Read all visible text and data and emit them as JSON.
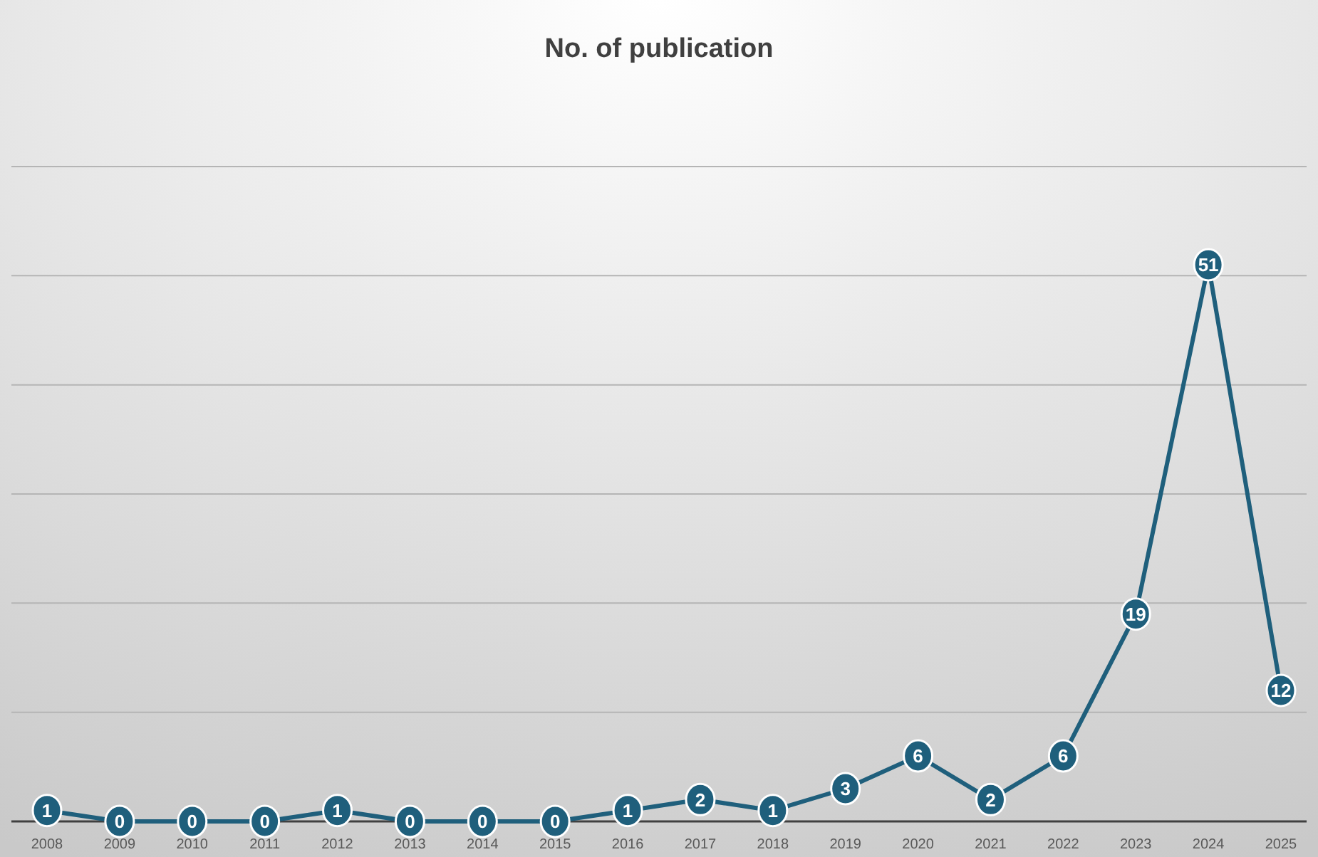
{
  "chart_data": {
    "type": "line",
    "title": "No. of publication",
    "categories": [
      "2008",
      "2009",
      "2010",
      "2011",
      "2012",
      "2013",
      "2014",
      "2015",
      "2016",
      "2017",
      "2018",
      "2019",
      "2020",
      "2021",
      "2022",
      "2023",
      "2024",
      "2025"
    ],
    "values": [
      1,
      0,
      0,
      0,
      1,
      0,
      0,
      0,
      1,
      2,
      1,
      3,
      6,
      2,
      6,
      19,
      51,
      12
    ],
    "color": "#1f5f7c",
    "marker": "circle",
    "line_style": "solid",
    "data_labels": true,
    "ylim": [
      0,
      60
    ],
    "yticks": [
      {
        "value": 0,
        "label": null
      },
      {
        "value": 10,
        "label": null
      },
      {
        "value": 20,
        "label": null
      },
      {
        "value": 30,
        "label": null
      },
      {
        "value": 40,
        "label": null
      },
      {
        "value": 50,
        "label": null
      },
      {
        "value": 60,
        "label": null
      }
    ],
    "grid": "y",
    "tick_labels": "x"
  }
}
